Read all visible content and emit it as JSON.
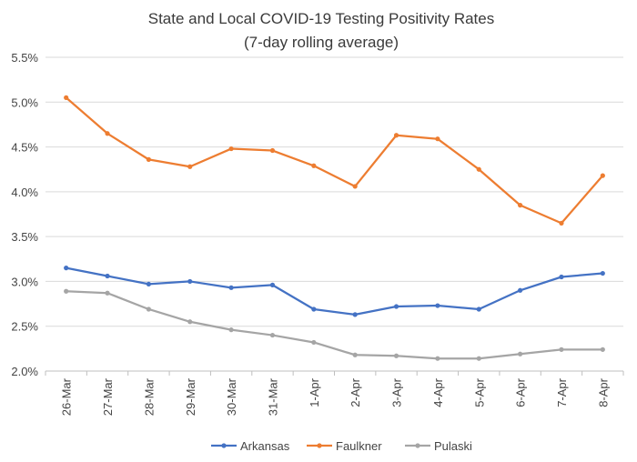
{
  "chart_data": {
    "type": "line",
    "title_lines": [
      "State and Local COVID-19 Testing Positivity Rates",
      "(7-day rolling average)"
    ],
    "xlabel": "",
    "ylabel": "",
    "categories": [
      "26-Mar",
      "27-Mar",
      "28-Mar",
      "29-Mar",
      "30-Mar",
      "31-Mar",
      "1-Apr",
      "2-Apr",
      "3-Apr",
      "4-Apr",
      "5-Apr",
      "6-Apr",
      "7-Apr",
      "8-Apr"
    ],
    "ylim": [
      2.0,
      5.5
    ],
    "yticks": [
      2.0,
      2.5,
      3.0,
      3.5,
      4.0,
      4.5,
      5.0,
      5.5
    ],
    "ytick_labels": [
      "2.0%",
      "2.5%",
      "3.0%",
      "3.5%",
      "4.0%",
      "4.5%",
      "5.0%",
      "5.5%"
    ],
    "grid": "horizontal",
    "legend_position": "bottom",
    "series": [
      {
        "name": "Arkansas",
        "color": "#4472C4",
        "values": [
          3.15,
          3.06,
          2.97,
          3.0,
          2.93,
          2.96,
          2.69,
          2.63,
          2.72,
          2.73,
          2.69,
          2.9,
          3.05,
          3.09
        ]
      },
      {
        "name": "Faulkner",
        "color": "#ED7D31",
        "values": [
          5.05,
          4.65,
          4.36,
          4.28,
          4.48,
          4.46,
          4.29,
          4.06,
          4.63,
          4.59,
          4.25,
          3.85,
          3.65,
          4.18
        ]
      },
      {
        "name": "Pulaski",
        "color": "#A5A5A5",
        "values": [
          2.89,
          2.87,
          2.69,
          2.55,
          2.46,
          2.4,
          2.32,
          2.18,
          2.17,
          2.14,
          2.14,
          2.19,
          2.24,
          2.24
        ]
      }
    ]
  }
}
